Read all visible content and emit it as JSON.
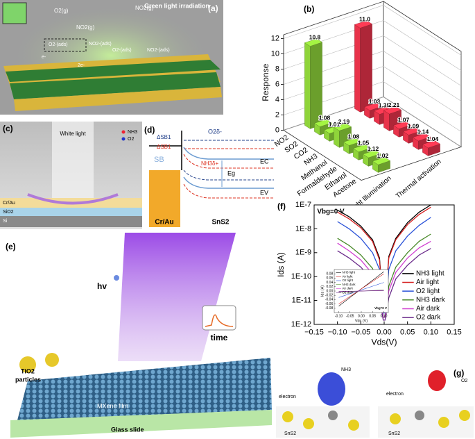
{
  "panels": {
    "a": {
      "label": "(a)",
      "caption": "Green light irradiation",
      "species": [
        "O2(g)",
        "NO2(g)",
        "NO2(g)",
        "O2-(ads)",
        "NO2-(ads)",
        "O2-(ads)",
        "NO2-(ads)",
        "2e-",
        "e-"
      ]
    },
    "b": {
      "label": "(b)"
    },
    "c": {
      "label": "(c)",
      "caption": "White light",
      "legend": [
        "NH3",
        "O2"
      ],
      "layers": [
        "Cr/Au",
        "SiO2",
        "Si"
      ]
    },
    "d": {
      "label": "(d)",
      "levels": [
        "ΔSB1",
        "ΔSB1",
        "O2δ-",
        "NH3δ+",
        "SB",
        "EC",
        "Eg",
        "EV"
      ],
      "materials": [
        "Cr/Au",
        "SnS2"
      ]
    },
    "e": {
      "label": "(e)",
      "texts": [
        "hv",
        "time",
        "TiO2",
        "particles",
        "MXene film",
        "Glass slide"
      ]
    },
    "f": {
      "label": "(f)"
    },
    "g": {
      "label": "(g)",
      "texts": [
        "NH3",
        "electron",
        "SnS2",
        "O2",
        "electron",
        "SnS2"
      ]
    }
  },
  "chart_data": [
    {
      "type": "bar",
      "y_label": "Response",
      "categories": [
        "NO2",
        "SO2",
        "CO2",
        "NH3",
        "Methanol",
        "Formaldehyde",
        "Ethanol",
        "Acetone"
      ],
      "series": [
        {
          "name": "Green light Illumination",
          "color": "#8fd43a",
          "values": [
            10.8,
            1.08,
            1.01,
            2.19,
            1.08,
            1.05,
            1.12,
            1.02
          ],
          "value_labels": [
            "10.8",
            "1.08",
            "1.01",
            "2.19",
            "1.08",
            "1.05",
            "1.12",
            "1.02"
          ]
        },
        {
          "name": "Thermal activation",
          "color": "#e8334a",
          "values": [
            11.0,
            1.03,
            1.35,
            2.21,
            1.07,
            1.09,
            1.14,
            1.04
          ],
          "value_labels": [
            "11.0",
            "1.03",
            "1.35",
            "2.21",
            "1.07",
            "1.09",
            "1.14",
            "1.04"
          ]
        }
      ],
      "ylim": [
        0,
        12.5
      ],
      "yticks": [
        0,
        2,
        4,
        6,
        8,
        10,
        12
      ],
      "grid": true
    },
    {
      "type": "line",
      "x_label": "Vds(V)",
      "y_label": "Ids (A)",
      "annotation": "Vbg=0 V",
      "log_y": true,
      "legend": "lower right",
      "x": [
        -0.1,
        -0.075,
        -0.05,
        -0.025,
        -0.01,
        -0.002,
        0.002,
        0.01,
        0.025,
        0.05,
        0.075,
        0.1
      ],
      "series": [
        {
          "name": "NH3 light",
          "color": "#000000",
          "values": [
            6e-08,
            3.2e-08,
            1.3e-08,
            3.5e-09,
            6e-10,
            5e-12,
            5e-12,
            7e-10,
            4e-09,
            1.8e-08,
            5e-08,
            1e-07
          ]
        },
        {
          "name": "Air light",
          "color": "#d62020",
          "values": [
            5e-08,
            2.6e-08,
            1.1e-08,
            3e-09,
            5e-10,
            4e-12,
            4e-12,
            6e-10,
            3.5e-09,
            1.5e-08,
            4e-08,
            8e-08
          ]
        },
        {
          "name": "O2 light",
          "color": "#2a52d8",
          "values": [
            2e-08,
            1e-08,
            4e-09,
            1e-09,
            2e-10,
            3e-12,
            3e-12,
            2e-10,
            1.2e-09,
            5e-09,
            1.4e-08,
            3e-08
          ]
        },
        {
          "name": "NH3 dark",
          "color": "#4a8a2a",
          "values": [
            4e-09,
            2e-09,
            8e-10,
            2.2e-10,
            4e-11,
            2e-12,
            2e-12,
            4e-11,
            2.5e-10,
            1e-09,
            3e-09,
            6e-09
          ]
        },
        {
          "name": "Air dark",
          "color": "#d040d0",
          "values": [
            2.5e-09,
            1.2e-09,
            5e-10,
            1.3e-10,
            2.5e-11,
            2e-12,
            2e-12,
            2.5e-11,
            1.5e-10,
            6e-10,
            1.6e-09,
            3e-09
          ]
        },
        {
          "name": "O2 dark",
          "color": "#6a2a8a",
          "values": [
            1.2e-09,
            6e-10,
            2.5e-10,
            7e-11,
            1.3e-11,
            1.5e-12,
            1.5e-12,
            1.3e-11,
            8e-11,
            3e-10,
            8e-10,
            1.5e-09
          ]
        }
      ],
      "xlim": [
        -0.15,
        0.15
      ],
      "xticks": [
        {
          "value": -0.15,
          "label": "−0.15"
        },
        {
          "value": -0.1,
          "label": "−0.10"
        },
        {
          "value": -0.05,
          "label": "−0.05"
        },
        {
          "value": 0,
          "label": "0.00"
        },
        {
          "value": 0.05,
          "label": "0.05"
        },
        {
          "value": 0.1,
          "label": "0.10"
        },
        {
          "value": 0.15,
          "label": "0.15"
        }
      ],
      "ylim": [
        1e-12,
        1e-07
      ],
      "yticks": [
        {
          "value": 1e-12,
          "label": "1E-12"
        },
        {
          "value": 1e-11,
          "label": "1E-11"
        },
        {
          "value": 1e-10,
          "label": "1E-10"
        },
        {
          "value": 1e-09,
          "label": "1E-9"
        },
        {
          "value": 1e-08,
          "label": "1E-8"
        },
        {
          "value": 1e-07,
          "label": "1E-7"
        }
      ]
    },
    {
      "type": "line",
      "x_label": "Vds (V)",
      "y_label": "Ids (A)",
      "annotation": "Vbg=0 V",
      "log_y": false,
      "legend": "upper left",
      "x": [
        -0.1,
        0.1
      ],
      "series": [
        {
          "name": "NH3 light",
          "color": "#000000",
          "values": [
            -0.07,
            0.09
          ]
        },
        {
          "name": "Air light",
          "color": "#d62020",
          "values": [
            -0.06,
            0.08
          ]
        },
        {
          "name": "O2 light",
          "color": "#2a52d8",
          "values": [
            -0.03,
            0.04
          ]
        },
        {
          "name": "NH3 dark",
          "color": "#4a8a2a",
          "values": [
            -0.005,
            0.005
          ]
        },
        {
          "name": "Air dark",
          "color": "#d040d0",
          "values": [
            -0.003,
            0.003
          ]
        },
        {
          "name": "O2 dark",
          "color": "#6a2a8a",
          "values": [
            -0.002,
            0.002
          ]
        }
      ],
      "xlim": [
        -0.12,
        0.12
      ],
      "xticks": [
        {
          "value": -0.1,
          "label": "-0.10"
        },
        -0.05,
        {
          "value": 0,
          "label": "0.00"
        },
        0.05,
        {
          "value": 0.1,
          "label": "0.10"
        }
      ],
      "ylim": [
        -0.1,
        0.1
      ],
      "yticks": [
        -0.08,
        -0.06,
        -0.04,
        -0.02,
        {
          "value": 0,
          "label": "0.00"
        },
        0.02,
        0.04,
        0.06,
        0.08
      ]
    }
  ]
}
